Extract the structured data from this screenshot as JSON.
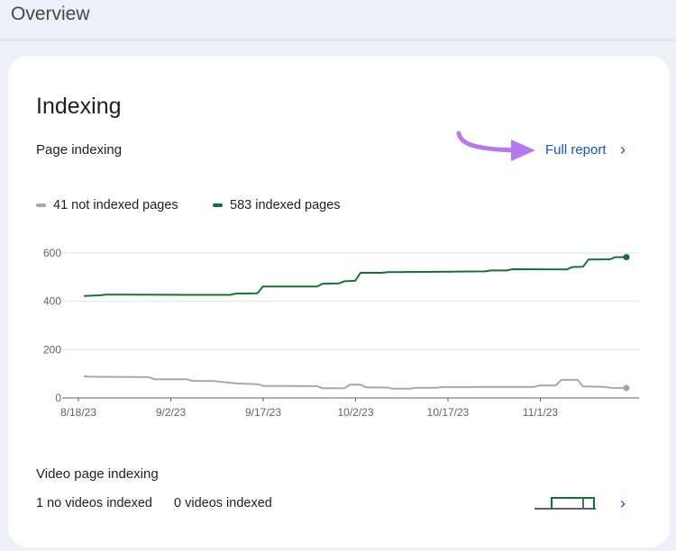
{
  "header": {
    "title": "Overview"
  },
  "card": {
    "title": "Indexing",
    "page_indexing": {
      "title": "Page indexing",
      "full_report_label": "Full report",
      "legend": [
        {
          "label": "41 not indexed pages",
          "color": "#a8a8a8"
        },
        {
          "label": "583 indexed pages",
          "color": "#137333"
        }
      ]
    },
    "video_indexing": {
      "title": "Video page indexing",
      "stats": [
        "1 no videos indexed",
        "0 videos indexed"
      ]
    }
  },
  "chart_data": {
    "type": "line",
    "x_ticks": [
      "8/18/23",
      "9/2/23",
      "9/17/23",
      "10/2/23",
      "10/17/23",
      "11/1/23"
    ],
    "y_ticks": [
      0,
      200,
      400,
      600
    ],
    "ylim": [
      0,
      630
    ],
    "grid": true,
    "legend_placement": "top-left",
    "x_range_days": [
      0,
      100
    ],
    "series": [
      {
        "name": "583 indexed pages",
        "color": "#137333",
        "points": [
          [
            0,
            422
          ],
          [
            3,
            425
          ],
          [
            4,
            428
          ],
          [
            9,
            428
          ],
          [
            19,
            427
          ],
          [
            27,
            427
          ],
          [
            28,
            432
          ],
          [
            32,
            433
          ],
          [
            33,
            461
          ],
          [
            43,
            461
          ],
          [
            44,
            473
          ],
          [
            47,
            474
          ],
          [
            48,
            483
          ],
          [
            50,
            485
          ],
          [
            51,
            518
          ],
          [
            55,
            518
          ],
          [
            56,
            521
          ],
          [
            68,
            523
          ],
          [
            74,
            524
          ],
          [
            75,
            528
          ],
          [
            78,
            528
          ],
          [
            79,
            533
          ],
          [
            89,
            532
          ],
          [
            90,
            542
          ],
          [
            92,
            543
          ],
          [
            93,
            573
          ],
          [
            97,
            574
          ],
          [
            98,
            583
          ],
          [
            100,
            583
          ]
        ]
      },
      {
        "name": "41 not indexed pages",
        "color": "#a8a8a8",
        "points": [
          [
            0,
            90
          ],
          [
            1,
            88
          ],
          [
            12,
            86
          ],
          [
            13,
            77
          ],
          [
            19,
            77
          ],
          [
            20,
            71
          ],
          [
            24,
            70
          ],
          [
            28,
            60
          ],
          [
            32,
            57
          ],
          [
            33,
            50
          ],
          [
            43,
            49
          ],
          [
            44,
            40
          ],
          [
            48,
            40
          ],
          [
            49,
            55
          ],
          [
            51,
            55
          ],
          [
            52,
            44
          ],
          [
            56,
            43
          ],
          [
            57,
            38
          ],
          [
            60,
            38
          ],
          [
            61,
            42
          ],
          [
            65,
            42
          ],
          [
            66,
            45
          ],
          [
            72,
            45
          ],
          [
            73,
            46
          ],
          [
            83,
            46
          ],
          [
            84,
            52
          ],
          [
            87,
            52
          ],
          [
            88,
            75
          ],
          [
            91,
            75
          ],
          [
            92,
            48
          ],
          [
            96,
            46
          ],
          [
            97,
            42
          ],
          [
            100,
            41
          ]
        ]
      }
    ]
  },
  "sparkline": {
    "type": "step",
    "colors": {
      "outline": "#137333",
      "base": "#5f6368"
    }
  }
}
